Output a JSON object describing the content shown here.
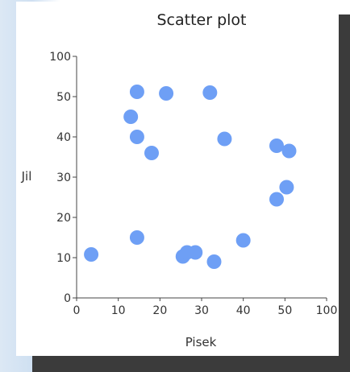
{
  "chart_data": {
    "type": "scatter",
    "title": "Scatter plot",
    "xlabel": "Pisek",
    "ylabel": "Jil",
    "xlim": [
      0,
      100
    ],
    "ylim": [
      0,
      100
    ],
    "x_ticks": [
      "0",
      "10",
      "20",
      "30",
      "40",
      "50",
      "100"
    ],
    "y_ticks": [
      "0",
      "10",
      "20",
      "30",
      "40",
      "50",
      "100"
    ],
    "grid": false,
    "legend": "none",
    "point_color": "#6e9ff5",
    "points": [
      {
        "x": 3.5,
        "y": 10.8
      },
      {
        "x": 14.5,
        "y": 15.0
      },
      {
        "x": 25.5,
        "y": 10.3
      },
      {
        "x": 26.5,
        "y": 11.3
      },
      {
        "x": 28.5,
        "y": 11.3
      },
      {
        "x": 33.0,
        "y": 9.0
      },
      {
        "x": 40.0,
        "y": 14.3
      },
      {
        "x": 48.0,
        "y": 24.5
      },
      {
        "x": 52.0,
        "y": 27.5
      },
      {
        "x": 48.0,
        "y": 37.8
      },
      {
        "x": 55.0,
        "y": 36.5
      },
      {
        "x": 35.5,
        "y": 39.5
      },
      {
        "x": 18.0,
        "y": 36.0
      },
      {
        "x": 14.5,
        "y": 40.0
      },
      {
        "x": 13.0,
        "y": 45.0
      },
      {
        "x": 14.5,
        "y": 56.0
      },
      {
        "x": 21.5,
        "y": 54.0
      },
      {
        "x": 32.0,
        "y": 55.0
      }
    ]
  }
}
